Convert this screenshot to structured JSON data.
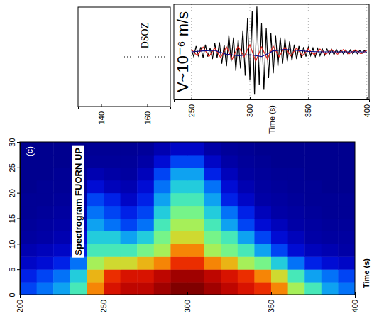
{
  "chart_data": [
    {
      "type": "line",
      "label": "DSOZ",
      "xlim": [
        130,
        170
      ],
      "xticks": [
        140,
        160
      ],
      "ylim": [
        -1,
        1
      ],
      "tick_labels": "x",
      "line_style": "dotted",
      "color": "#000000",
      "x": [
        150,
        170
      ],
      "values": [
        0,
        0
      ]
    },
    {
      "type": "line",
      "annotation": "V~10⁻⁶ m/s",
      "xlabel": "Time (s)",
      "xlim": [
        235,
        402
      ],
      "xticks": [
        250,
        300,
        350,
        400
      ],
      "ylim": [
        -1,
        1
      ],
      "tick_labels": "x",
      "grid": true,
      "series": [
        {
          "color": "#000000",
          "x": [
            250,
            252,
            254,
            256,
            258,
            260,
            262,
            264,
            266,
            268,
            270,
            272,
            274,
            276,
            278,
            280,
            282,
            284,
            286,
            288,
            290,
            292,
            294,
            296,
            298,
            300,
            302,
            304,
            306,
            308,
            310,
            312,
            314,
            316,
            318,
            320,
            322,
            324,
            326,
            328,
            330,
            332,
            334,
            336,
            338,
            340,
            342,
            344,
            346,
            348,
            350,
            352,
            354,
            356,
            358,
            360,
            362,
            364,
            366,
            368,
            370,
            372,
            374,
            376,
            378,
            380,
            382,
            384,
            386,
            388,
            390,
            392,
            394,
            396,
            398,
            400
          ],
          "values": [
            0.05,
            -0.1,
            0.12,
            -0.08,
            0.1,
            -0.12,
            0.15,
            -0.1,
            0.08,
            -0.15,
            0.18,
            -0.12,
            0.2,
            -0.25,
            0.15,
            -0.3,
            0.35,
            -0.2,
            0.3,
            -0.4,
            0.25,
            -0.35,
            0.45,
            -0.5,
            0.7,
            -0.6,
            0.85,
            -0.9,
            0.95,
            -0.7,
            0.6,
            -0.8,
            0.5,
            -0.55,
            0.4,
            -0.45,
            0.35,
            -0.3,
            0.3,
            -0.25,
            0.28,
            -0.2,
            0.22,
            -0.18,
            0.15,
            -0.15,
            0.12,
            -0.12,
            0.1,
            -0.1,
            0.1,
            -0.08,
            0.08,
            -0.1,
            0.07,
            -0.08,
            0.06,
            -0.07,
            0.06,
            -0.05,
            0.05,
            -0.06,
            0.05,
            -0.04,
            0.05,
            -0.04,
            0.04,
            -0.05,
            0.04,
            -0.04,
            0.03,
            -0.04,
            0.03,
            -0.03,
            0.03,
            -0.02
          ]
        },
        {
          "color": "#e8201a",
          "x": [
            250,
            255,
            260,
            265,
            270,
            275,
            280,
            285,
            290,
            295,
            300,
            305,
            310,
            315,
            320,
            325,
            330,
            335,
            340,
            345,
            350,
            355,
            360,
            365,
            370,
            375,
            380,
            385,
            390,
            395,
            400
          ],
          "values": [
            0.05,
            -0.08,
            0.1,
            -0.1,
            0.08,
            -0.12,
            0.1,
            -0.15,
            0.12,
            -0.1,
            0.15,
            -0.2,
            0.1,
            -0.15,
            0.12,
            -0.1,
            0.1,
            -0.08,
            0.08,
            -0.08,
            0.06,
            -0.06,
            0.06,
            -0.05,
            0.05,
            -0.05,
            0.05,
            -0.04,
            0.04,
            -0.04,
            0.03
          ]
        },
        {
          "color": "#0a0a8c",
          "x": [
            250,
            260,
            270,
            280,
            290,
            300,
            310,
            320,
            330,
            340,
            350,
            360,
            370,
            380,
            390,
            400
          ],
          "values": [
            0,
            0.02,
            0.03,
            -0.05,
            -0.08,
            -0.06,
            -0.1,
            0.02,
            0.05,
            0.03,
            0.01,
            0,
            0,
            0,
            0,
            0
          ]
        }
      ]
    },
    {
      "type": "heatmap",
      "title": "Spectrogram FUORN UP",
      "label": "(c)",
      "xlabel": "Time (s)",
      "xlim": [
        200,
        400
      ],
      "xticks": [
        200,
        250,
        300,
        350,
        400
      ],
      "ylim": [
        0,
        30
      ],
      "yticks": [
        0,
        5,
        10,
        15,
        20,
        25,
        30
      ],
      "x": [
        205,
        215,
        225,
        235,
        245,
        255,
        265,
        275,
        285,
        295,
        305,
        315,
        325,
        335,
        345,
        355,
        365,
        375,
        385,
        395
      ],
      "y": [
        1.25,
        3.75,
        6.25,
        8.75,
        11.25,
        13.75,
        16.25,
        18.75,
        21.25,
        23.75,
        26.25,
        28.75
      ],
      "cells": [
        [
          0.25,
          0.3,
          0.35,
          0.45,
          0.7,
          0.85,
          0.9,
          0.9,
          0.95,
          1.0,
          1.0,
          0.95,
          0.9,
          0.85,
          0.8,
          0.7,
          0.55,
          0.45,
          0.35,
          0.3
        ],
        [
          0.2,
          0.25,
          0.3,
          0.4,
          0.65,
          0.8,
          0.85,
          0.85,
          0.9,
          0.95,
          0.95,
          0.9,
          0.85,
          0.8,
          0.7,
          0.6,
          0.45,
          0.35,
          0.3,
          0.25
        ],
        [
          0.12,
          0.15,
          0.2,
          0.3,
          0.55,
          0.6,
          0.6,
          0.65,
          0.7,
          0.8,
          0.8,
          0.7,
          0.65,
          0.55,
          0.5,
          0.4,
          0.3,
          0.2,
          0.15,
          0.12
        ],
        [
          0.08,
          0.1,
          0.12,
          0.2,
          0.45,
          0.45,
          0.45,
          0.5,
          0.55,
          0.7,
          0.7,
          0.55,
          0.5,
          0.45,
          0.35,
          0.25,
          0.15,
          0.1,
          0.08,
          0.06
        ],
        [
          0.05,
          0.06,
          0.08,
          0.15,
          0.4,
          0.4,
          0.35,
          0.4,
          0.5,
          0.6,
          0.6,
          0.5,
          0.45,
          0.35,
          0.25,
          0.15,
          0.1,
          0.06,
          0.05,
          0.05
        ],
        [
          0.04,
          0.05,
          0.06,
          0.1,
          0.35,
          0.3,
          0.25,
          0.3,
          0.45,
          0.55,
          0.55,
          0.45,
          0.35,
          0.25,
          0.15,
          0.1,
          0.06,
          0.05,
          0.04,
          0.04
        ],
        [
          0.03,
          0.04,
          0.05,
          0.08,
          0.3,
          0.25,
          0.2,
          0.25,
          0.4,
          0.5,
          0.5,
          0.4,
          0.3,
          0.2,
          0.1,
          0.06,
          0.05,
          0.04,
          0.03,
          0.03
        ],
        [
          0.03,
          0.03,
          0.04,
          0.06,
          0.25,
          0.2,
          0.12,
          0.2,
          0.35,
          0.45,
          0.45,
          0.35,
          0.2,
          0.12,
          0.06,
          0.05,
          0.04,
          0.03,
          0.03,
          0.03
        ],
        [
          0.02,
          0.03,
          0.03,
          0.04,
          0.15,
          0.1,
          0.08,
          0.15,
          0.3,
          0.4,
          0.4,
          0.3,
          0.15,
          0.08,
          0.05,
          0.04,
          0.03,
          0.03,
          0.02,
          0.02
        ],
        [
          0.02,
          0.02,
          0.03,
          0.03,
          0.08,
          0.06,
          0.05,
          0.1,
          0.25,
          0.35,
          0.35,
          0.2,
          0.1,
          0.05,
          0.04,
          0.03,
          0.03,
          0.02,
          0.02,
          0.02
        ],
        [
          0.02,
          0.02,
          0.02,
          0.03,
          0.04,
          0.04,
          0.04,
          0.06,
          0.15,
          0.25,
          0.25,
          0.12,
          0.06,
          0.04,
          0.03,
          0.02,
          0.02,
          0.02,
          0.02,
          0.02
        ],
        [
          0.02,
          0.02,
          0.02,
          0.02,
          0.03,
          0.03,
          0.03,
          0.04,
          0.08,
          0.12,
          0.12,
          0.06,
          0.04,
          0.03,
          0.02,
          0.02,
          0.02,
          0.02,
          0.02,
          0.02
        ]
      ]
    }
  ]
}
